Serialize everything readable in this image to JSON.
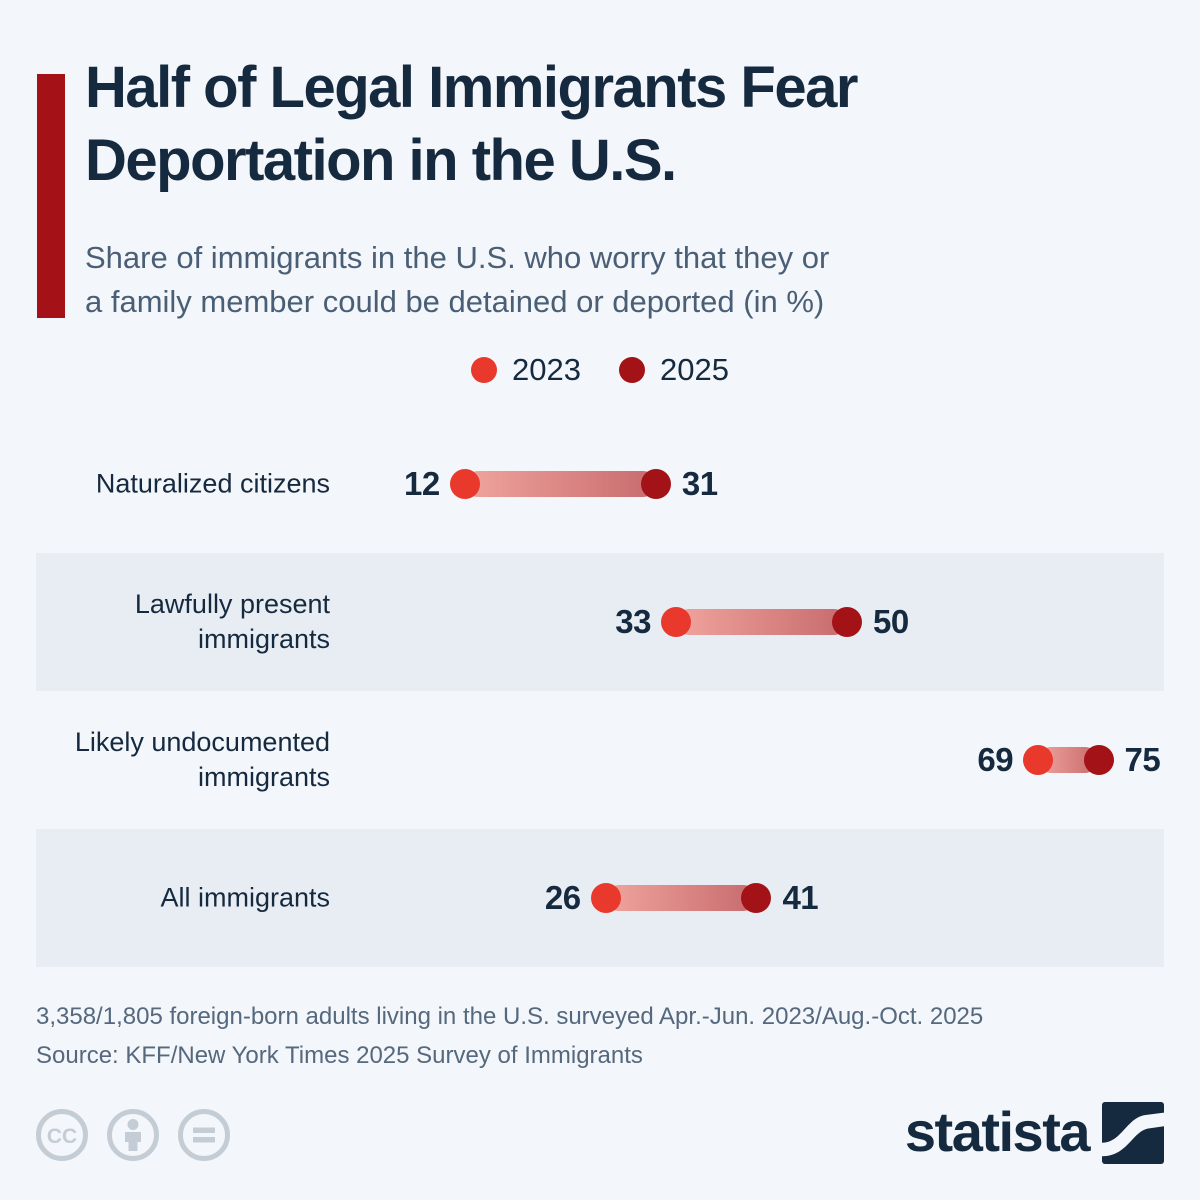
{
  "colors": {
    "page_bg": "#f3f6fa",
    "row_band_bg": "#e8edf4",
    "accent_red": "#a41116",
    "navy_text": "#15293f",
    "subtitle_text": "#4a5f76",
    "footnote_text": "#55687d",
    "series_2023_red": "#e8392c",
    "series_2025_dark_red": "#a31217",
    "connector_gradient_start": "#f0a49d",
    "connector_gradient_end": "#c76b6e",
    "license_icon_gray": "#c4cdd5"
  },
  "header": {
    "title_line1": "Half of Legal Immigrants Fear",
    "title_line2": "Deportation in the U.S.",
    "subtitle_line1": "Share of immigrants in the U.S. who worry that they or",
    "subtitle_line2": "a family member could be detained or deported (in %)"
  },
  "chart_data": {
    "type": "dumbbell",
    "title": "Half of Legal Immigrants Fear Deportation in the U.S.",
    "subtitle": "Share of immigrants in the U.S. who worry that they or a family member could be detained or deported (in %)",
    "categories": [
      [
        "Naturalized citizens"
      ],
      [
        "Lawfully present",
        "immigrants"
      ],
      [
        "Likely undocumented",
        "immigrants"
      ],
      [
        "All immigrants"
      ]
    ],
    "series": [
      {
        "name": "2023",
        "values": [
          12,
          33,
          69,
          26
        ],
        "color": "#e8392c"
      },
      {
        "name": "2025",
        "values": [
          31,
          50,
          75,
          41
        ],
        "color": "#a31217"
      }
    ],
    "value_unit": "%",
    "xlim": [
      0,
      100
    ],
    "grid": false,
    "legend_position": "top-center",
    "shaded_rows": [
      1,
      3
    ],
    "connector_gradient": [
      "#f0a49d",
      "#c76b6e"
    ]
  },
  "footer": {
    "note": "3,358/1,805 foreign-born adults living in the U.S. surveyed Apr.-Jun. 2023/Aug.-Oct. 2025",
    "source": "Source: KFF/New York Times 2025 Survey of Immigrants"
  },
  "branding": {
    "logo_text": "statista",
    "license_icons": [
      "cc-icon",
      "attribution-icon",
      "no-derivatives-icon"
    ]
  }
}
